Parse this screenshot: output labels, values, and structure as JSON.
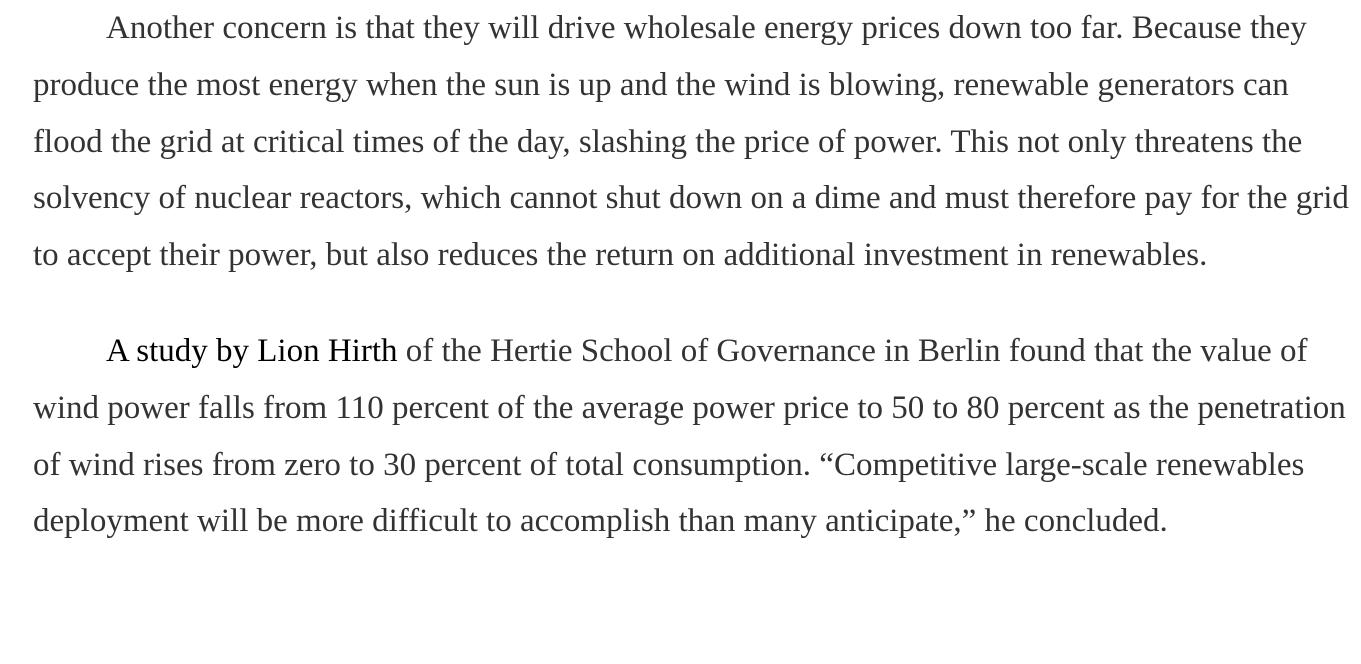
{
  "article": {
    "paragraph_1": "Another concern is that they will drive wholesale energy prices down too far. Because they produce the most energy when the sun is up and the wind is blowing, renewable generators can flood the grid at critical times of the day, slashing the price of power. This not only threatens the solvency of nuclear reactors, which cannot shut down on a dime and must therefore pay for the grid to accept their power, but also reduces the return on additional investment in renewables.",
    "paragraph_2": {
      "link_text": "A study by Lion Hirth",
      "rest_text": " of the Hertie School of Governance in Berlin found that the value of wind power falls from 110 percent of the average power price to 50 to 80 percent as the penetration of wind rises from zero to 30 percent of total consumption. “Competitive large-scale renewables deployment will be more difficult to accomplish than many anticipate,” he concluded."
    }
  }
}
